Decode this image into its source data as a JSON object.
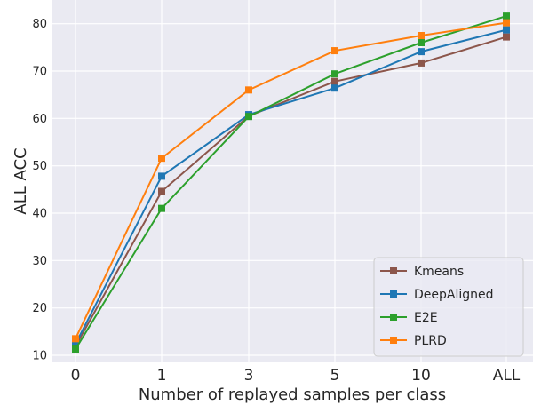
{
  "chart_data": {
    "type": "line",
    "title": "",
    "xlabel": "Number of replayed samples per class",
    "ylabel": "ALL ACC",
    "categories": [
      "0",
      "1",
      "3",
      "5",
      "10",
      "ALL"
    ],
    "ylim": [
      8.5,
      85
    ],
    "yticks": [
      10,
      20,
      30,
      40,
      50,
      60,
      70,
      80
    ],
    "grid": true,
    "legend_position": "bottom-right",
    "background_color": "#eaeaf2",
    "marker": "square",
    "series": [
      {
        "name": "Kmeans",
        "color": "#8c564b",
        "values": [
          11.9,
          44.6,
          60.5,
          67.8,
          71.7,
          77.2
        ]
      },
      {
        "name": "DeepAligned",
        "color": "#1f77b4",
        "values": [
          12.4,
          47.8,
          60.8,
          66.4,
          74.1,
          78.7
        ]
      },
      {
        "name": "E2E",
        "color": "#2ca02c",
        "values": [
          11.3,
          41.0,
          60.4,
          69.4,
          76.0,
          81.6
        ]
      },
      {
        "name": "PLRD",
        "color": "#ff7f0e",
        "values": [
          13.5,
          51.6,
          66.0,
          74.3,
          77.5,
          80.2
        ]
      }
    ]
  }
}
